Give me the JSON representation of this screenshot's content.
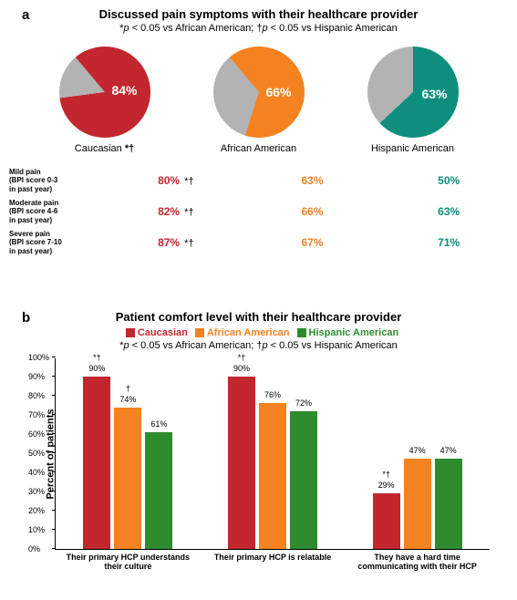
{
  "colors": {
    "caucasian": "#c1272d",
    "african": "#f58220",
    "hispanic": "#0e8f7e",
    "grey": "#b3b3b3",
    "hispanic_bar": "#2e8b2e"
  },
  "panel_a": {
    "label": "a",
    "title": "Discussed pain symptoms with their healthcare provider",
    "subtitle_pre": "*",
    "subtitle_p1": "p",
    "subtitle_mid1": " < 0.05 vs African American; †",
    "subtitle_p2": "p",
    "subtitle_mid2": " < 0.05 vs Hispanic American",
    "pies": [
      {
        "name": "Caucasian",
        "sig": "*†",
        "pct": 84,
        "start": -40
      },
      {
        "name": "African American",
        "sig": "",
        "pct": 66,
        "start": -40
      },
      {
        "name": "Hispanic American",
        "sig": "",
        "pct": 63,
        "start": 0
      }
    ],
    "rows": [
      {
        "label_l1": "Mild pain",
        "label_l2": "(BPI score 0-3",
        "label_l3": "in past year)",
        "cells": [
          {
            "v": "80%",
            "sig": "*†"
          },
          {
            "v": "63%",
            "sig": ""
          },
          {
            "v": "50%",
            "sig": ""
          }
        ]
      },
      {
        "label_l1": "Moderate pain",
        "label_l2": "(BPI score 4-6",
        "label_l3": "in past year)",
        "cells": [
          {
            "v": "82%",
            "sig": "*†"
          },
          {
            "v": "66%",
            "sig": ""
          },
          {
            "v": "63%",
            "sig": ""
          }
        ]
      },
      {
        "label_l1": "Severe pain",
        "label_l2": "(BPI score 7-10",
        "label_l3": "in past year)",
        "cells": [
          {
            "v": "87%",
            "sig": "*†"
          },
          {
            "v": "67%",
            "sig": ""
          },
          {
            "v": "71%",
            "sig": ""
          }
        ]
      }
    ]
  },
  "panel_b": {
    "label": "b",
    "title": "Patient comfort level with their healthcare provider",
    "legend": [
      {
        "label": "Caucasian"
      },
      {
        "label": "African American"
      },
      {
        "label": "Hispanic American"
      }
    ],
    "subtitle_pre": "*",
    "subtitle_p1": "p",
    "subtitle_mid1": " < 0.05 vs African American; †",
    "subtitle_p2": "p",
    "subtitle_mid2": " < 0.05 vs Hispanic American",
    "ylabel": "Percent of patients",
    "ymax": 100,
    "ytick_step": 10,
    "groups": [
      {
        "xlabel": "Their primary HCP understands their culture",
        "bars": [
          {
            "v": 90,
            "sig": "*†"
          },
          {
            "v": 74,
            "sig": "†"
          },
          {
            "v": 61,
            "sig": ""
          }
        ]
      },
      {
        "xlabel": "Their primary HCP is relatable",
        "bars": [
          {
            "v": 90,
            "sig": "*†"
          },
          {
            "v": 76,
            "sig": ""
          },
          {
            "v": 72,
            "sig": ""
          }
        ]
      },
      {
        "xlabel": "They have a hard time communicating with their HCP",
        "bars": [
          {
            "v": 29,
            "sig": "*†"
          },
          {
            "v": 47,
            "sig": ""
          },
          {
            "v": 47,
            "sig": ""
          }
        ]
      }
    ]
  }
}
